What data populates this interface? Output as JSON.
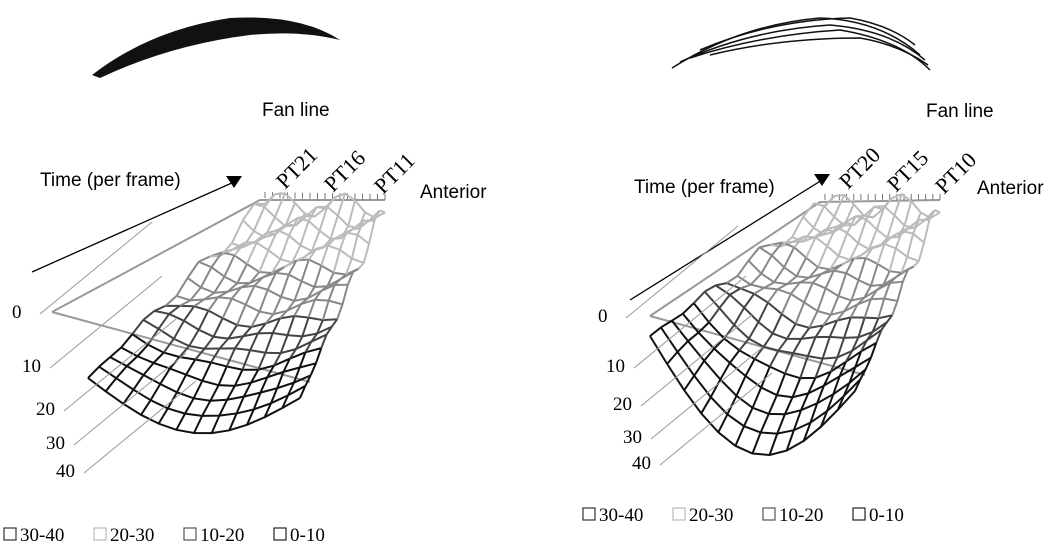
{
  "panels": [
    {
      "axis_title": "Fan line",
      "time_label": "Time (per frame)",
      "points": [
        "PT21",
        "PT16",
        "PT11"
      ],
      "anterior": "Anterior",
      "z_ticks": [
        "0",
        "10",
        "20",
        "30",
        "40"
      ],
      "legend": [
        "30-40",
        "20-30",
        "10-20",
        "0-10"
      ]
    },
    {
      "axis_title": "Fan line",
      "time_label": "Time (per frame)",
      "points": [
        "PT20",
        "PT15",
        "PT10"
      ],
      "anterior": "Anterior",
      "z_ticks": [
        "0",
        "10",
        "20",
        "30",
        "40"
      ],
      "legend": [
        "30-40",
        "20-30",
        "10-20",
        "0-10"
      ]
    }
  ]
}
